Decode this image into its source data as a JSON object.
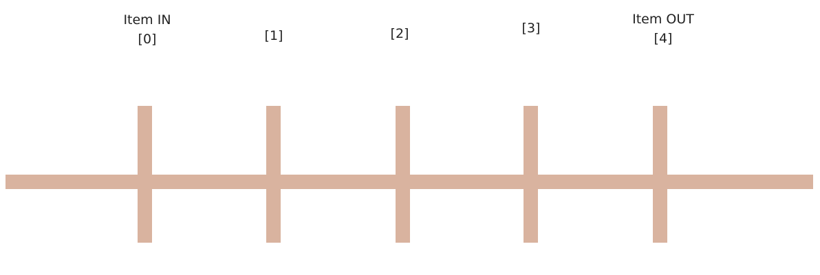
{
  "colors": {
    "bar": "#d9b39f",
    "text": "#222222"
  },
  "slots": [
    {
      "title": "Item IN",
      "index": "[0]"
    },
    {
      "title": "",
      "index": "[1]"
    },
    {
      "title": "",
      "index": "[2]"
    },
    {
      "title": "",
      "index": "[3]"
    },
    {
      "title": "Item OUT",
      "index": "[4]"
    }
  ]
}
